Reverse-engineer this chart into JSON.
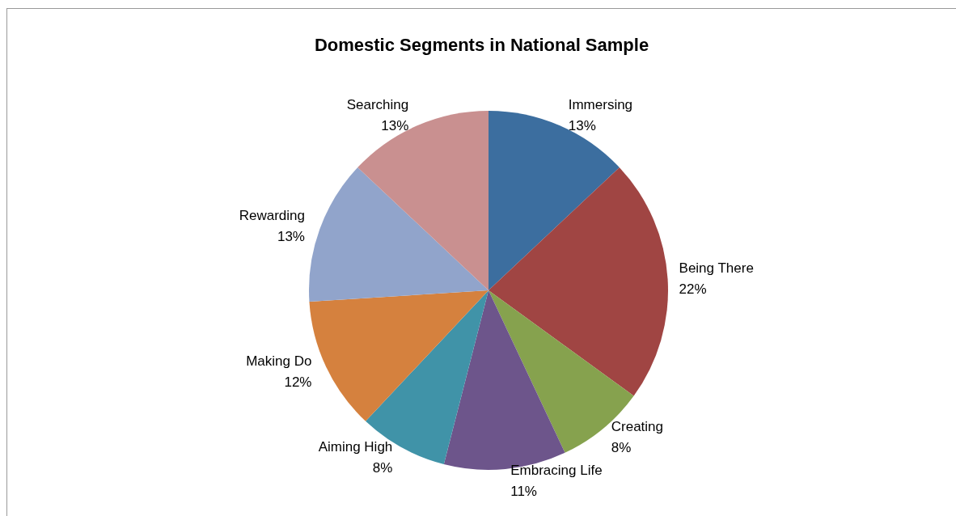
{
  "chart_data": {
    "type": "pie",
    "title": "Domestic Segments in National Sample",
    "categories": [
      "Immersing",
      "Being There",
      "Creating",
      "Embracing Life",
      "Aiming High",
      "Making Do",
      "Rewarding",
      "Searching"
    ],
    "values": [
      13,
      22,
      8,
      11,
      8,
      12,
      13,
      13
    ],
    "value_labels": [
      "13%",
      "22%",
      "8%",
      "11%",
      "8%",
      "12%",
      "13%",
      "13%"
    ],
    "colors": [
      "#3c6e9f",
      "#a04543",
      "#86a24e",
      "#6d558b",
      "#4093a8",
      "#d5813e",
      "#91a4cb",
      "#c99090"
    ],
    "legend": false
  }
}
